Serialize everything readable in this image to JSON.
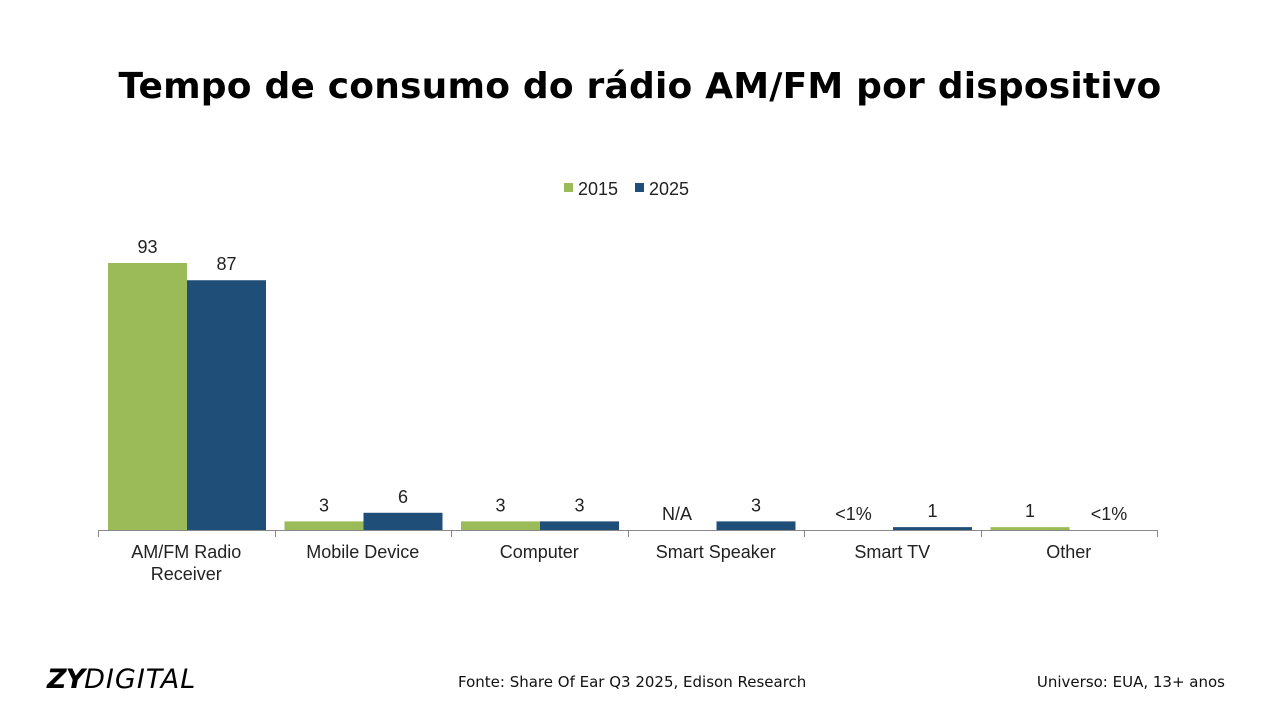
{
  "chart_data": {
    "type": "bar",
    "title": "Tempo de consumo do rádio AM/FM por dispositivo",
    "categories": [
      "AM/FM Radio Receiver",
      "Mobile Device",
      "Computer",
      "Smart Speaker",
      "Smart TV",
      "Other"
    ],
    "series": [
      {
        "name": "2015",
        "color": "#9BBB59",
        "values": [
          93,
          3,
          3,
          null,
          null,
          1
        ],
        "labels": [
          "93",
          "3",
          "3",
          "N/A",
          "<1%",
          "1"
        ]
      },
      {
        "name": "2025",
        "color": "#1F4E79",
        "values": [
          87,
          6,
          3,
          3,
          1,
          null
        ],
        "labels": [
          "87",
          "6",
          "3",
          "3",
          "1",
          "<1%"
        ]
      }
    ],
    "ylim": [
      0,
      100
    ],
    "grid": false,
    "legend": "top-center",
    "xlabel": "",
    "ylabel": ""
  },
  "footer": {
    "logo": "ZYDIGITAL",
    "logo_bold": "ZY",
    "logo_light": "DIGITAL",
    "source": "Fonte: Share Of Ear Q3 2025, Edison Research",
    "universe": "Universo: EUA, 13+ anos"
  }
}
